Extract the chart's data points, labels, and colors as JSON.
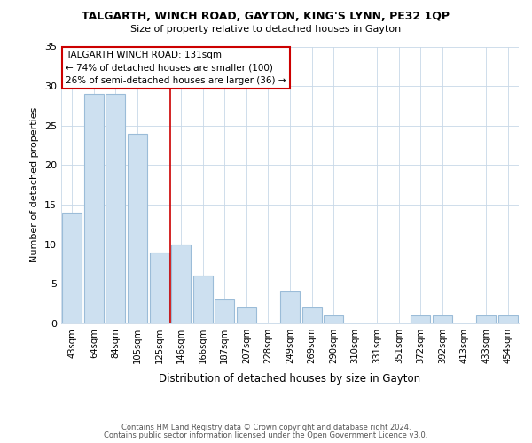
{
  "title": "TALGARTH, WINCH ROAD, GAYTON, KING'S LYNN, PE32 1QP",
  "subtitle": "Size of property relative to detached houses in Gayton",
  "xlabel": "Distribution of detached houses by size in Gayton",
  "ylabel": "Number of detached properties",
  "footer_line1": "Contains HM Land Registry data © Crown copyright and database right 2024.",
  "footer_line2": "Contains public sector information licensed under the Open Government Licence v3.0.",
  "categories": [
    "43sqm",
    "64sqm",
    "84sqm",
    "105sqm",
    "125sqm",
    "146sqm",
    "166sqm",
    "187sqm",
    "207sqm",
    "228sqm",
    "249sqm",
    "269sqm",
    "290sqm",
    "310sqm",
    "331sqm",
    "351sqm",
    "372sqm",
    "392sqm",
    "413sqm",
    "433sqm",
    "454sqm"
  ],
  "values": [
    14,
    29,
    29,
    24,
    9,
    10,
    6,
    3,
    2,
    0,
    4,
    2,
    1,
    0,
    0,
    0,
    1,
    1,
    0,
    1,
    1
  ],
  "bar_color": "#cde0f0",
  "bar_edge_color": "#9bbcd8",
  "vline_x": 4.5,
  "vline_color": "#cc0000",
  "annotation_title": "TALGARTH WINCH ROAD: 131sqm",
  "annotation_line1": "← 74% of detached houses are smaller (100)",
  "annotation_line2": "26% of semi-detached houses are larger (36) →",
  "annotation_box_color": "white",
  "annotation_box_edge_color": "#cc0000",
  "ylim": [
    0,
    35
  ],
  "yticks": [
    0,
    5,
    10,
    15,
    20,
    25,
    30,
    35
  ],
  "bg_color": "white",
  "grid_color": "#c8d8e8"
}
